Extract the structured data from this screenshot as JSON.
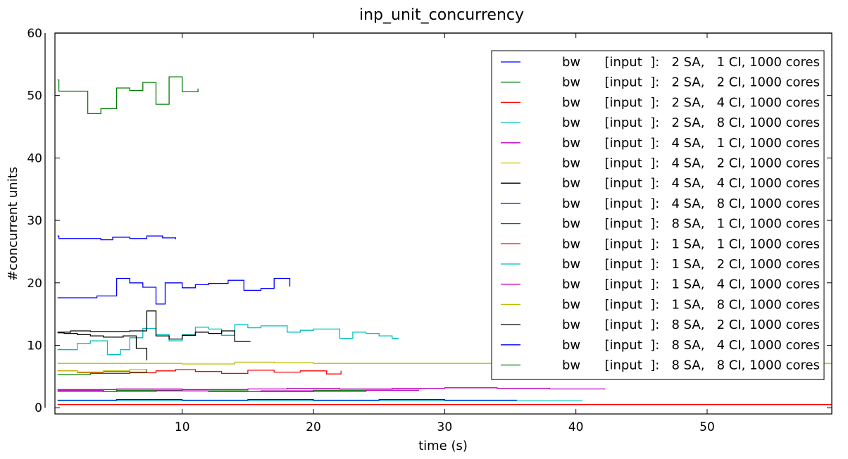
{
  "chart_data": {
    "type": "line",
    "title": "inp_unit_concurrency",
    "xlabel": "time (s)",
    "ylabel": "#concurrent units",
    "xlim": [
      0.3,
      59.5
    ],
    "ylim": [
      -1,
      60
    ],
    "xticks": [
      10,
      20,
      30,
      40,
      50
    ],
    "yticks": [
      0,
      10,
      20,
      30,
      40,
      50,
      60
    ],
    "grid": false,
    "legend_position": "top-right",
    "series": [
      {
        "name": "bw      [input  ]:   2 SA,   1 CI, 1000 cores",
        "color": "#0000ff",
        "step": true,
        "x": [
          0.5,
          5,
          10,
          15,
          20,
          25,
          30,
          35.5
        ],
        "y": [
          1.2,
          1.3,
          1.2,
          1.3,
          1.2,
          1.3,
          1.2,
          1.2
        ]
      },
      {
        "name": "bw      [input  ]:   2 SA,   2 CI, 1000 cores",
        "color": "#008000",
        "step": true,
        "x": [
          0.5,
          5,
          10,
          15,
          20,
          26.5
        ],
        "y": [
          2.6,
          2.8,
          2.7,
          2.6,
          2.8,
          2.9
        ]
      },
      {
        "name": "bw      [input  ]:   2 SA,   4 CI, 1000 cores",
        "color": "#ff0000",
        "step": true,
        "x": [
          0.5,
          2,
          4,
          6,
          8,
          9.5,
          11,
          13,
          15,
          17,
          19,
          21,
          22.1
        ],
        "y": [
          5.9,
          5.7,
          5.8,
          5.6,
          5.9,
          6.1,
          5.8,
          5.5,
          6.0,
          5.7,
          5.9,
          5.4,
          5.9
        ]
      },
      {
        "name": "bw      [input  ]:   2 SA,   8 CI, 1000 cores",
        "color": "#00bfbf",
        "step": true,
        "x": [
          0.5,
          2,
          3,
          4.3,
          5.3,
          6,
          7,
          8,
          9,
          10,
          11,
          12,
          13,
          14,
          15,
          16,
          18,
          19,
          20,
          22,
          23,
          24,
          25,
          26,
          26.5
        ],
        "y": [
          9.3,
          10.3,
          10.7,
          8.5,
          9.3,
          11.2,
          12.7,
          11.7,
          10.7,
          11.7,
          12.9,
          12.6,
          11.6,
          13.3,
          12.8,
          13.1,
          12.1,
          12.4,
          12.6,
          11.1,
          12.1,
          11.9,
          11.5,
          11.1,
          11.1
        ]
      },
      {
        "name": "bw      [input  ]:   4 SA,   1 CI, 1000 cores",
        "color": "#bf00bf",
        "step": true,
        "x": [
          0.5,
          5,
          10,
          15,
          18,
          22,
          26,
          30,
          34,
          38,
          42.2
        ],
        "y": [
          2.9,
          3.0,
          2.9,
          3.0,
          3.1,
          3.0,
          3.1,
          3.2,
          3.1,
          3.0,
          2.9
        ]
      },
      {
        "name": "bw      [input  ]:   4 SA,   2 CI, 1000 cores",
        "color": "#bfbf00",
        "step": true,
        "x": [
          0.5,
          10,
          14,
          17,
          20,
          25,
          30,
          35,
          40,
          45,
          50,
          55,
          59.5
        ],
        "y": [
          7.1,
          7.0,
          7.3,
          7.2,
          7.1,
          7.1,
          7.1,
          7.1,
          7.1,
          7.1,
          7.1,
          7.1,
          7.1
        ]
      },
      {
        "name": "bw      [input  ]:   4 SA,   4 CI, 1000 cores",
        "color": "#000000",
        "step": true,
        "x": [
          0.5,
          1.5,
          3,
          6,
          7.3,
          8,
          9,
          10,
          11,
          12,
          13,
          14,
          15.2
        ],
        "y": [
          12.1,
          12.3,
          12.2,
          12.3,
          15.5,
          11.5,
          11.0,
          11.6,
          12.1,
          11.9,
          12.3,
          10.6,
          10.6
        ]
      },
      {
        "name": "bw      [input  ]:   4 SA,   8 CI, 1000 cores",
        "color": "#0000ff",
        "step": true,
        "x": [
          0.5,
          3.5,
          5,
          6,
          7,
          8,
          8.7,
          10,
          11,
          12,
          13.5,
          14.7,
          16,
          17,
          18.2
        ],
        "y": [
          17.6,
          17.9,
          20.7,
          20.0,
          19.3,
          16.6,
          20.0,
          19.2,
          19.7,
          19.9,
          20.4,
          18.8,
          19.1,
          20.7,
          19.4
        ]
      },
      {
        "name": "bw      [input  ]:   8 SA,   1 CI, 1000 cores",
        "color": "#008000",
        "step": true,
        "x": [
          0.5,
          0.6,
          2.8,
          3.8,
          5,
          6,
          7,
          8,
          9,
          10,
          11.2
        ],
        "y": [
          52.5,
          50.7,
          47.1,
          47.9,
          51.2,
          50.8,
          52.1,
          48.6,
          53.0,
          50.6,
          51.1
        ]
      },
      {
        "name": "bw      [input  ]:   1 SA,   1 CI, 1000 cores",
        "color": "#ff0000",
        "step": true,
        "x": [
          0.5,
          59.5
        ],
        "y": [
          0.5,
          0.5
        ]
      },
      {
        "name": "bw      [input  ]:   1 SA,   2 CI, 1000 cores",
        "color": "#00bfbf",
        "step": true,
        "x": [
          0.5,
          40.5
        ],
        "y": [
          1.1,
          1.1
        ]
      },
      {
        "name": "bw      [input  ]:   1 SA,   4 CI, 1000 cores",
        "color": "#bf00bf",
        "step": true,
        "x": [
          0.5,
          4,
          8,
          12,
          16,
          20,
          24,
          28
        ],
        "y": [
          2.8,
          2.6,
          2.7,
          2.6,
          2.7,
          2.6,
          2.8,
          2.9
        ]
      },
      {
        "name": "bw      [input  ]:   1 SA,   8 CI, 1000 cores",
        "color": "#bfbf00",
        "step": true,
        "x": [
          0.5,
          2,
          4,
          6,
          7.3
        ],
        "y": [
          5.9,
          5.6,
          5.9,
          6.1,
          6.2
        ]
      },
      {
        "name": "bw      [input  ]:   8 SA,   2 CI, 1000 cores",
        "color": "#000000",
        "step": true,
        "x": [
          0.5,
          1,
          2,
          3,
          4,
          5.5,
          6.5,
          7.3
        ],
        "y": [
          12.0,
          11.9,
          11.7,
          11.5,
          11.3,
          11.5,
          9.5,
          7.6
        ]
      },
      {
        "name": "bw      [input  ]:   8 SA,   4 CI, 1000 cores",
        "color": "#0000ff",
        "step": true,
        "x": [
          0.5,
          0.6,
          3.8,
          4.7,
          6,
          7.3,
          8.5,
          9.5
        ],
        "y": [
          27.5,
          27.1,
          26.9,
          27.3,
          27.1,
          27.5,
          27.2,
          27.0
        ]
      },
      {
        "name": "bw      [input  ]:   8 SA,   8 CI, 1000 cores",
        "color": "#008000",
        "step": true,
        "x": [
          0.5,
          3,
          6,
          7.3
        ],
        "y": [
          5.3,
          5.5,
          5.7,
          6.1
        ]
      }
    ]
  }
}
